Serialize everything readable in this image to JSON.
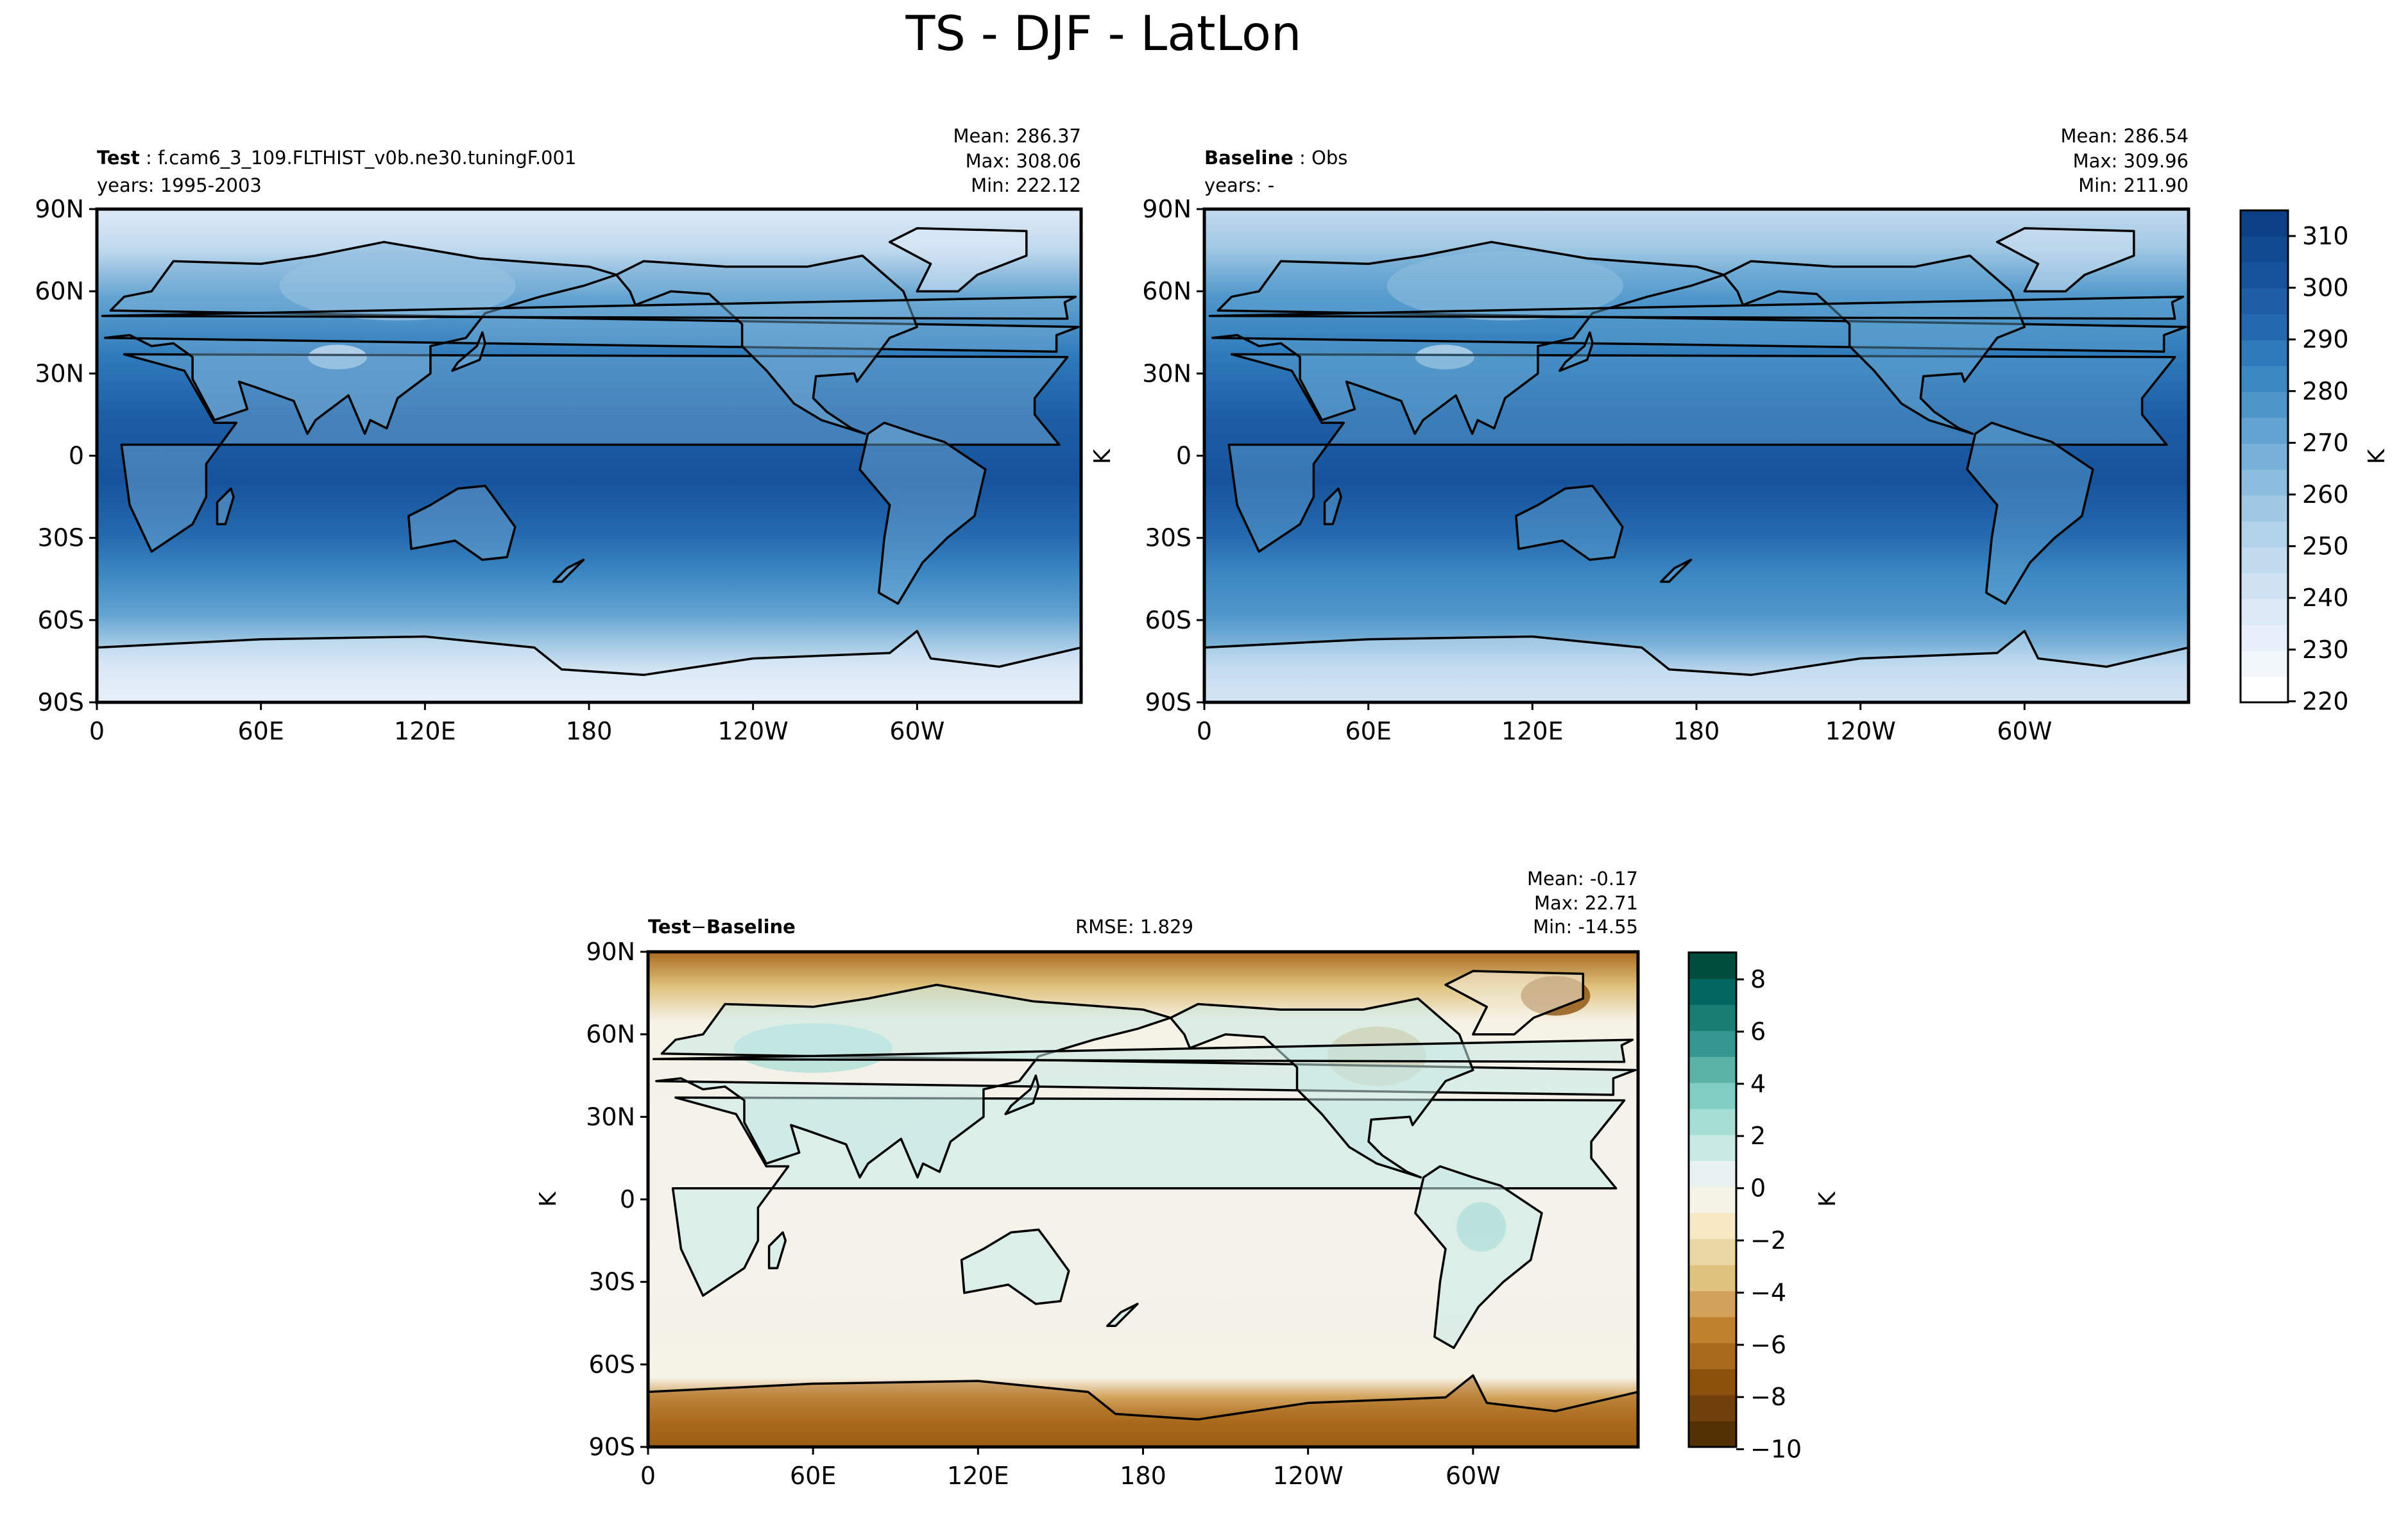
{
  "figure": {
    "title": "TS - DJF - LatLon"
  },
  "chart_data": [
    {
      "type": "heatmap",
      "panel": "test",
      "label_bold": "Test",
      "label_text": "f.cam6_3_109.FLTHIST_v0b.ne30.tuningF.001",
      "years": "years: 1995-2003",
      "stats": {
        "mean": "Mean: 286.37",
        "max": "Max: 308.06",
        "min": "Min: 222.12"
      },
      "xticks": [
        "0",
        "60E",
        "120E",
        "180",
        "120W",
        "60W"
      ],
      "yticks": [
        "90N",
        "60N",
        "30N",
        "0",
        "30S",
        "60S",
        "90S"
      ],
      "xlim": [
        0,
        360
      ],
      "ylim": [
        -90,
        90
      ],
      "field_range": [
        220,
        315
      ],
      "ylabel": "K"
    },
    {
      "type": "heatmap",
      "panel": "baseline",
      "label_bold": "Baseline",
      "label_text": "Obs",
      "years": "years: -",
      "stats": {
        "mean": "Mean: 286.54",
        "max": "Max: 309.96",
        "min": "Min: 211.90"
      },
      "xticks": [
        "0",
        "60E",
        "120E",
        "180",
        "120W",
        "60W"
      ],
      "yticks": [
        "90N",
        "60N",
        "30N",
        "0",
        "30S",
        "60S",
        "90S"
      ],
      "xlim": [
        0,
        360
      ],
      "ylim": [
        -90,
        90
      ],
      "field_range": [
        220,
        315
      ],
      "colorbar": {
        "label": "K",
        "ticks": [
          "310",
          "300",
          "290",
          "280",
          "270",
          "260",
          "250",
          "240",
          "230",
          "220"
        ],
        "levels": 19,
        "colors": [
          "#ffffff",
          "#f2f7fc",
          "#e7f0fa",
          "#dce9f6",
          "#d0e2f2",
          "#c2daee",
          "#b2d2ea",
          "#a0c8e4",
          "#8cbcde",
          "#77b0d8",
          "#62a3d1",
          "#4e96ca",
          "#3c88c2",
          "#2e7aba",
          "#2469ae",
          "#1d5ea5",
          "#17539c",
          "#124a92",
          "#0c3f85"
        ]
      }
    },
    {
      "type": "heatmap",
      "panel": "difference",
      "label_bold_1": "Test",
      "label_op": "−",
      "label_bold_2": "Baseline",
      "rmse": "RMSE: 1.829",
      "stats": {
        "mean": "Mean: -0.17",
        "max": "Max: 22.71",
        "min": "Min: -14.55"
      },
      "xticks": [
        "0",
        "60E",
        "120E",
        "180",
        "120W",
        "60W"
      ],
      "yticks": [
        "90N",
        "60N",
        "30N",
        "0",
        "30S",
        "60S",
        "90S"
      ],
      "xlim": [
        0,
        360
      ],
      "ylim": [
        -90,
        90
      ],
      "field_range": [
        -10,
        9
      ],
      "ylabel": "K",
      "colorbar": {
        "label": "K",
        "ticks": [
          "8",
          "6",
          "4",
          "2",
          "0",
          "−2",
          "−4",
          "−6",
          "−8",
          "−10"
        ],
        "levels": 19,
        "colors": [
          "#543005",
          "#6f4009",
          "#8c510a",
          "#a96a1e",
          "#bf812d",
          "#d2a25a",
          "#dfc27d",
          "#ebd7a5",
          "#f6e8c3",
          "#f5f2e6",
          "#e8f3f1",
          "#c7eae5",
          "#a5ddd5",
          "#80cdc1",
          "#5bb3a8",
          "#35978f",
          "#1a7d74",
          "#01665e",
          "#004d3e"
        ]
      }
    }
  ]
}
